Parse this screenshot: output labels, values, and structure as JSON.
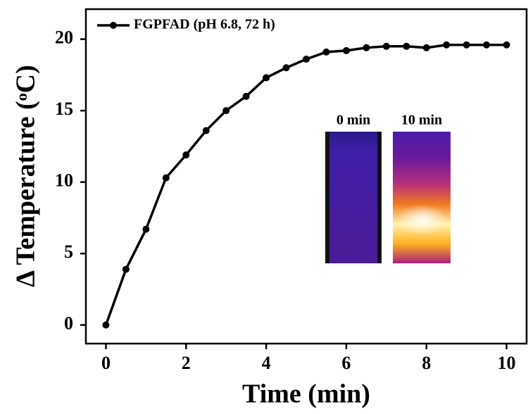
{
  "chart_data": {
    "type": "line",
    "xlabel": "Time (min)",
    "ylabel": "Δ Temperature (ᵒC)",
    "x": [
      0,
      0.5,
      1,
      1.5,
      2,
      2.5,
      3,
      3.5,
      4,
      4.5,
      5,
      5.5,
      6,
      6.5,
      7,
      7.5,
      8,
      8.5,
      9,
      9.5,
      10
    ],
    "series": [
      {
        "name": "FGPFAD (pH 6.8, 72 h)",
        "color": "#000000",
        "values": [
          0,
          3.9,
          6.7,
          10.3,
          11.9,
          13.6,
          15.0,
          16.0,
          17.3,
          18.0,
          18.6,
          19.1,
          19.2,
          19.4,
          19.5,
          19.5,
          19.4,
          19.6,
          19.6,
          19.6,
          19.6
        ]
      }
    ],
    "xlim": [
      -0.5,
      10.5
    ],
    "xticks": [
      0,
      2,
      4,
      6,
      8,
      10
    ],
    "ylim": [
      -1.3,
      22.1
    ],
    "yticks": [
      0,
      5,
      10,
      15,
      20
    ],
    "legend": "upper left",
    "inset_labels": [
      "0 min",
      "10 min"
    ]
  }
}
